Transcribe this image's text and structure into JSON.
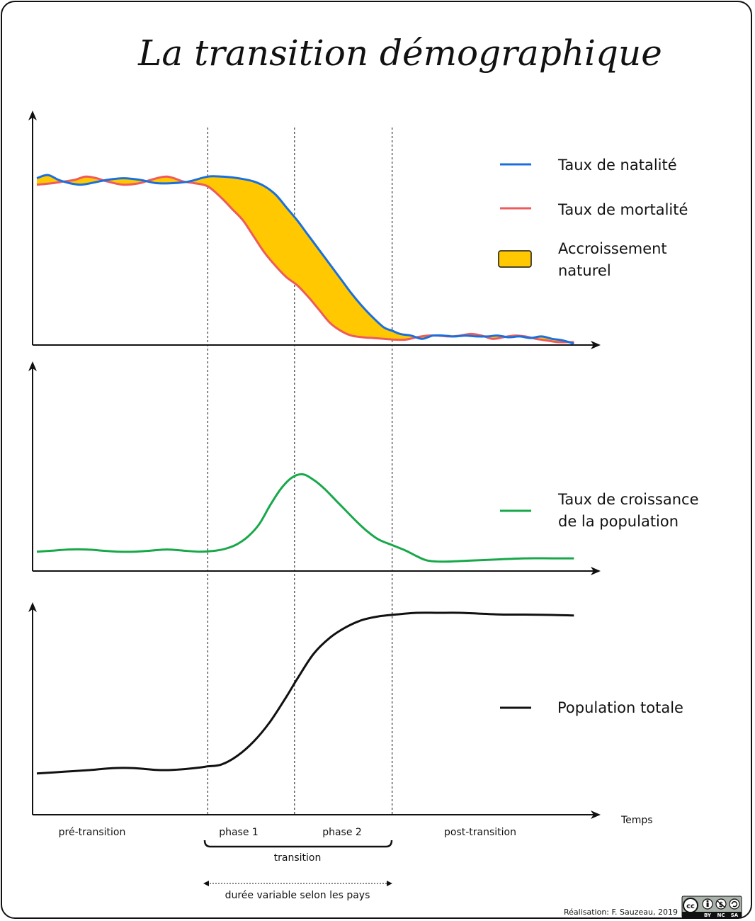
{
  "title": "La transition démographique",
  "colors": {
    "birth": "#1a6fde",
    "death": "#ef5b5b",
    "fill": "#ffc800",
    "growth": "#18a84a",
    "population": "#111111"
  },
  "legend": {
    "birth": "Taux de natalité",
    "death": "Taux de mortalité",
    "natural_line1": "Accroissement",
    "natural_line2": "naturel",
    "growth_line1": "Taux de croissance",
    "growth_line2": "de la population",
    "population": "Population totale"
  },
  "axis": {
    "time": "Temps"
  },
  "phases": {
    "pre": "pré-transition",
    "phase1": "phase 1",
    "phase2": "phase 2",
    "post": "post-transition",
    "transition": "transition",
    "duration": "durée variable selon les pays"
  },
  "credit": "Réalisation: F. Sauzeau, 2019",
  "license": {
    "badge": "cc",
    "by": "BY",
    "nc": "NC",
    "sa": "SA"
  },
  "chart_data": {
    "type": "line",
    "x_domain": [
      0,
      100
    ],
    "phase_boundaries": [
      31.5,
      47.5,
      65.5
    ],
    "panels": [
      {
        "name": "rates",
        "y_domain": [
          0,
          100
        ],
        "series": [
          {
            "key": "birth",
            "x": [
              0,
              2,
              4,
              6,
              8,
              10,
              13,
              16,
              19,
              22,
              25,
              28,
              31.5,
              34,
              36,
              38,
              40,
              42,
              44,
              46,
              48,
              50,
              52,
              54,
              56,
              58,
              60,
              62,
              64,
              65.5,
              67,
              69,
              71,
              73,
              75,
              77,
              79,
              81,
              83,
              85,
              87,
              89,
              91,
              93,
              95,
              97,
              99
            ],
            "y": [
              98,
              100,
              97,
              95,
              94,
              95,
              97,
              98,
              97,
              95,
              95,
              96,
              99,
              99,
              98.5,
              97.5,
              96,
              93,
              88,
              80,
              72,
              63,
              54,
              45,
              36,
              27,
              19,
              12,
              6,
              4,
              2,
              1,
              -1,
              1,
              1,
              0.5,
              1,
              0.5,
              0.5,
              1,
              0,
              0.5,
              -0.5,
              0.5,
              -1,
              -2,
              -4
            ]
          },
          {
            "key": "death",
            "x": [
              0,
              3,
              5,
              7,
              9,
              11,
              13,
              16,
              19,
              21,
              24,
              27,
              29,
              31.5,
              34,
              36,
              38,
              40,
              42,
              44,
              46,
              48,
              50,
              52,
              54,
              56,
              58,
              60,
              62,
              64,
              66,
              68,
              70,
              72,
              74,
              76,
              78,
              80,
              82,
              84,
              86,
              88,
              90,
              92,
              94,
              96,
              98,
              99
            ],
            "y": [
              94,
              95,
              96,
              97,
              99,
              98,
              96,
              94,
              95,
              97,
              99,
              96,
              95,
              93,
              86,
              79,
              72,
              62,
              52,
              44,
              37,
              32,
              25,
              17,
              9,
              4,
              1,
              0,
              -0.5,
              -1,
              -1.5,
              -1.5,
              0,
              1,
              1,
              0.5,
              1,
              2,
              1,
              -1,
              0,
              1,
              0.5,
              -1,
              -2,
              -3,
              -3,
              -3
            ]
          },
          {
            "key": "natural_increase",
            "role": "shaded area between birth and death rates"
          }
        ]
      },
      {
        "name": "growth",
        "y_domain": [
          0,
          100
        ],
        "series": [
          {
            "key": "growth",
            "x": [
              0,
              3,
              6,
              9,
              12,
              15,
              18,
              21,
              24,
              27,
              30,
              33,
              35,
              37,
              39,
              41,
              43,
              45,
              47,
              49,
              51,
              53,
              55,
              57,
              59,
              61,
              63,
              65.5,
              68,
              70,
              72,
              75,
              80,
              85,
              90,
              95,
              99
            ],
            "y": [
              13,
              14,
              15,
              15,
              14,
              13,
              13,
              14,
              15,
              14,
              13,
              14,
              16,
              20,
              27,
              38,
              55,
              70,
              80,
              83,
              78,
              70,
              60,
              50,
              40,
              31,
              24,
              19,
              14,
              9,
              5,
              4,
              5,
              6,
              7,
              7,
              7
            ]
          }
        ]
      },
      {
        "name": "population",
        "y_domain": [
          0,
          100
        ],
        "series": [
          {
            "key": "population",
            "x": [
              0,
              5,
              10,
              14,
              18,
              22,
              25,
              29,
              31.5,
              34,
              37,
              40,
              43,
              46,
              48,
              51,
              54,
              57,
              60,
              63,
              66,
              70,
              74,
              78,
              82,
              86,
              90,
              95,
              99
            ],
            "y": [
              10,
              11,
              12,
              13,
              13,
              12,
              12,
              13,
              14,
              15,
              20,
              28,
              39,
              53,
              63,
              77,
              86,
              92,
              96,
              98,
              99,
              100,
              100,
              100,
              99.5,
              99,
              99,
              98.8,
              98.5
            ]
          }
        ]
      }
    ]
  }
}
